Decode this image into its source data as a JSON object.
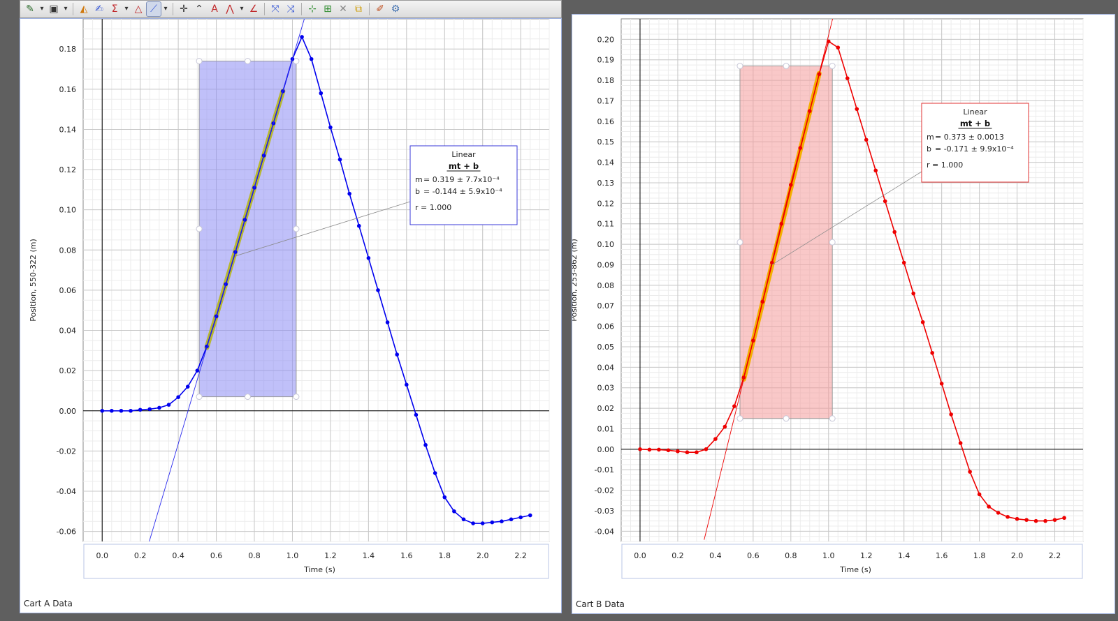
{
  "toolbar": {
    "buttons": [
      {
        "name": "graph-options-icon",
        "glyph": "✎"
      },
      {
        "name": "dropdown-arrow-icon",
        "glyph": "▾"
      },
      {
        "name": "page-layout-icon",
        "glyph": "▣"
      },
      {
        "name": "dropdown-arrow-icon",
        "glyph": "▾"
      },
      {
        "name": "data-color-icon",
        "glyph": "◭"
      },
      {
        "name": "annotate-icon",
        "glyph": "✍"
      },
      {
        "name": "statistics-sigma-icon",
        "glyph": "Σ"
      },
      {
        "name": "dropdown-arrow-icon",
        "glyph": "▾"
      },
      {
        "name": "integral-area-icon",
        "glyph": "△"
      },
      {
        "name": "curve-fit-icon",
        "glyph": "⟋"
      },
      {
        "name": "dropdown-arrow-icon",
        "glyph": "▾"
      },
      {
        "name": "crosshair-icon",
        "glyph": "✛"
      },
      {
        "name": "tangent-icon",
        "glyph": "⌃"
      },
      {
        "name": "text-annotation-icon",
        "glyph": "A"
      },
      {
        "name": "signal-icon",
        "glyph": "⋀"
      },
      {
        "name": "dropdown-arrow-icon",
        "glyph": "▾"
      },
      {
        "name": "smart-tool-icon",
        "glyph": "∠"
      },
      {
        "name": "scale-data-icon",
        "glyph": "⤧"
      },
      {
        "name": "scale-selection-icon",
        "glyph": "⤨"
      },
      {
        "name": "add-coordinate-icon",
        "glyph": "⊹"
      },
      {
        "name": "select-region-icon",
        "glyph": "⊞"
      },
      {
        "name": "delete-icon",
        "glyph": "✕"
      },
      {
        "name": "duplicate-icon",
        "glyph": "⧉"
      },
      {
        "name": "highlight-icon",
        "glyph": "✐"
      },
      {
        "name": "settings-gear-icon",
        "glyph": "⚙"
      }
    ],
    "colors": [
      "#2a6b2a",
      "#333333",
      "#333333",
      "#333333",
      "#d07a10",
      "#3b5bd6",
      "#c0282a",
      "#333333",
      "#c0282a",
      "#3b5bd6",
      "#333333",
      "#333333",
      "#333333",
      "#c0282a",
      "#c0282a",
      "#333333",
      "#c0282a",
      "#3b5bd6",
      "#3b5bd6",
      "#2a8a2a",
      "#2a8a2a",
      "#888888",
      "#d0a010",
      "#c05020",
      "#4070b0"
    ]
  },
  "chart_data": [
    {
      "type": "line",
      "panel_label": "Cart A Data",
      "xlabel": "Time (s)",
      "ylabel": "Position, 550-322 (m)",
      "xlim": [
        -0.1,
        2.35
      ],
      "ylim": [
        -0.065,
        0.195
      ],
      "xticks": [
        0,
        0.2,
        0.4,
        0.6,
        0.8,
        1.0,
        1.2,
        1.4,
        1.6,
        1.8,
        2.0,
        2.2
      ],
      "xtick_labels": [
        "0.0",
        "0.2",
        "0.4",
        "0.6",
        "0.8",
        "1.0",
        "1.2",
        "1.4",
        "1.6",
        "1.8",
        "2.0",
        "2.2"
      ],
      "yticks": [
        -0.06,
        -0.04,
        -0.02,
        0,
        0.02,
        0.04,
        0.06,
        0.08,
        0.1,
        0.12,
        0.14,
        0.16,
        0.18
      ],
      "ytick_labels": [
        "-0.06",
        "-0.04",
        "-0.02",
        "0.00",
        "0.02",
        "0.04",
        "0.06",
        "0.08",
        "0.10",
        "0.12",
        "0.14",
        "0.16",
        "0.18"
      ],
      "grid": true,
      "series": [
        {
          "color": "#0000ee",
          "x": [
            0,
            0.05,
            0.1,
            0.15,
            0.2,
            0.25,
            0.3,
            0.35,
            0.4,
            0.45,
            0.5,
            0.55,
            0.6,
            0.65,
            0.7,
            0.75,
            0.8,
            0.85,
            0.9,
            0.95,
            1.0,
            1.05,
            1.1,
            1.15,
            1.2,
            1.25,
            1.3,
            1.35,
            1.4,
            1.45,
            1.5,
            1.55,
            1.6,
            1.65,
            1.7,
            1.75,
            1.8,
            1.85,
            1.9,
            1.95,
            2.0,
            2.05,
            2.1,
            2.15,
            2.2,
            2.25
          ],
          "y": [
            0,
            0,
            0,
            0,
            0.0005,
            0.0008,
            0.0015,
            0.003,
            0.0068,
            0.012,
            0.02,
            0.032,
            0.047,
            0.063,
            0.079,
            0.095,
            0.111,
            0.127,
            0.143,
            0.159,
            0.175,
            0.186,
            0.175,
            0.158,
            0.141,
            0.125,
            0.108,
            0.092,
            0.076,
            0.06,
            0.044,
            0.028,
            0.013,
            -0.002,
            -0.017,
            -0.031,
            -0.043,
            -0.05,
            -0.054,
            -0.056,
            -0.056,
            -0.0555,
            -0.055,
            -0.054,
            -0.053,
            -0.052
          ]
        }
      ],
      "selection": {
        "x": [
          0.51,
          1.02
        ],
        "y": [
          0.007,
          0.174
        ],
        "color": "#8c8cf4"
      },
      "fit": {
        "color": "#2a2aee",
        "highlight": "#b8b830",
        "m": 0.319,
        "b": -0.144,
        "seg_x": [
          0.55,
          0.95
        ],
        "line_x": [
          0.24,
          1.1
        ]
      },
      "fit_box": {
        "title": "Linear",
        "equation": "mt + b",
        "m_label": "m",
        "m_value": "= 0.319  ± 7.7x10⁻⁴",
        "b_label": "b",
        "b_value": "= -0.144 ± 5.9x10⁻⁴",
        "r_text": "r = 1.000",
        "border": "#3a3ad8",
        "anchor": {
          "x": 0.7,
          "y": 0.077
        }
      }
    },
    {
      "type": "line",
      "panel_label": "Cart B Data",
      "xlabel": "Time (s)",
      "ylabel": "Position, 253-862 (m)",
      "xlim": [
        -0.1,
        2.35
      ],
      "ylim": [
        -0.045,
        0.21
      ],
      "xticks": [
        0,
        0.2,
        0.4,
        0.6,
        0.8,
        1.0,
        1.2,
        1.4,
        1.6,
        1.8,
        2.0,
        2.2
      ],
      "xtick_labels": [
        "0.0",
        "0.2",
        "0.4",
        "0.6",
        "0.8",
        "1.0",
        "1.2",
        "1.4",
        "1.6",
        "1.8",
        "2.0",
        "2.2"
      ],
      "yticks": [
        -0.04,
        -0.03,
        -0.02,
        -0.01,
        0,
        0.01,
        0.02,
        0.03,
        0.04,
        0.05,
        0.06,
        0.07,
        0.08,
        0.09,
        0.1,
        0.11,
        0.12,
        0.13,
        0.14,
        0.15,
        0.16,
        0.17,
        0.18,
        0.19,
        0.2
      ],
      "ytick_labels": [
        "-0.04",
        "-0.03",
        "-0.02",
        "-0.01",
        "0.00",
        "0.01",
        "0.02",
        "0.03",
        "0.04",
        "0.05",
        "0.06",
        "0.07",
        "0.08",
        "0.09",
        "0.10",
        "0.11",
        "0.12",
        "0.13",
        "0.14",
        "0.15",
        "0.16",
        "0.17",
        "0.18",
        "0.19",
        "0.20"
      ],
      "grid": true,
      "series": [
        {
          "color": "#ee0000",
          "x": [
            0,
            0.05,
            0.1,
            0.15,
            0.2,
            0.25,
            0.3,
            0.35,
            0.4,
            0.45,
            0.5,
            0.55,
            0.6,
            0.65,
            0.7,
            0.75,
            0.8,
            0.85,
            0.9,
            0.95,
            1.0,
            1.05,
            1.1,
            1.15,
            1.2,
            1.25,
            1.3,
            1.35,
            1.4,
            1.45,
            1.5,
            1.55,
            1.6,
            1.65,
            1.7,
            1.75,
            1.8,
            1.85,
            1.9,
            1.95,
            2.0,
            2.05,
            2.1,
            2.15,
            2.2,
            2.25
          ],
          "y": [
            0,
            -0.0002,
            -0.0002,
            -0.0005,
            -0.001,
            -0.0015,
            -0.0015,
            0,
            0.005,
            0.011,
            0.021,
            0.035,
            0.053,
            0.072,
            0.091,
            0.11,
            0.129,
            0.147,
            0.165,
            0.183,
            0.199,
            0.196,
            0.181,
            0.166,
            0.151,
            0.136,
            0.121,
            0.106,
            0.091,
            0.076,
            0.062,
            0.047,
            0.032,
            0.017,
            0.003,
            -0.011,
            -0.022,
            -0.028,
            -0.031,
            -0.033,
            -0.034,
            -0.0345,
            -0.035,
            -0.035,
            -0.0345,
            -0.0335
          ]
        }
      ],
      "selection": {
        "x": [
          0.53,
          1.02
        ],
        "y": [
          0.015,
          0.187
        ],
        "color": "#f49a9a"
      },
      "fit": {
        "color": "#ee0000",
        "highlight": "#f4b000",
        "m": 0.373,
        "b": -0.171,
        "seg_x": [
          0.55,
          0.95
        ],
        "line_x": [
          0.34,
          1.03
        ]
      },
      "fit_box": {
        "title": "Linear",
        "equation": "mt + b",
        "m_label": "m",
        "m_value": "= 0.373  ± 0.0013",
        "b_label": "b",
        "b_value": "= -0.171 ± 9.9x10⁻⁴",
        "r_text": "r = 1.000",
        "border": "#e03030",
        "anchor": {
          "x": 0.7,
          "y": 0.09
        }
      }
    }
  ]
}
